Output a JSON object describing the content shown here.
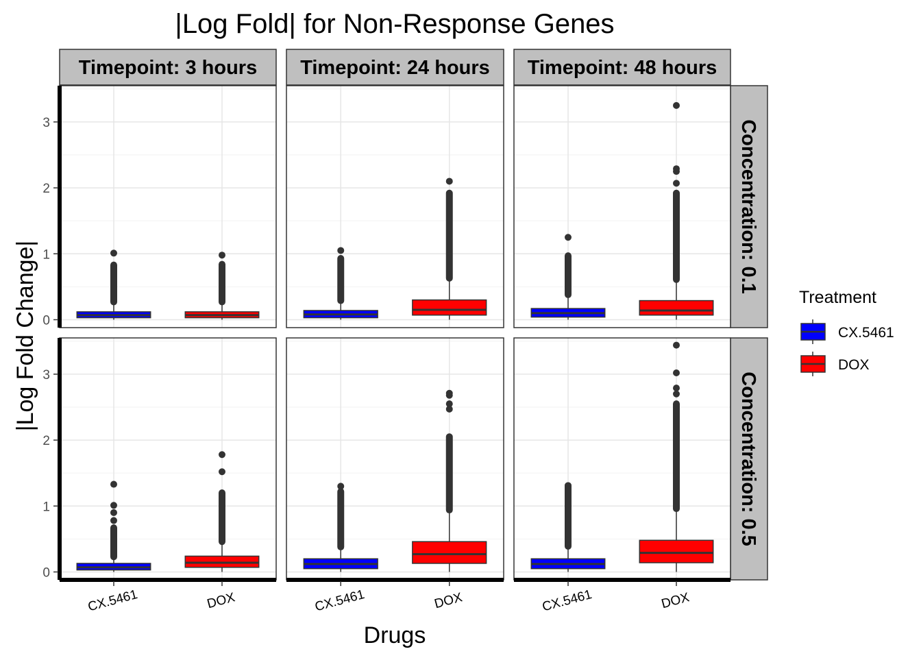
{
  "chart_data": {
    "type": "boxplot",
    "title": "|Log Fold| for Non-Response Genes",
    "xlabel": "Drugs",
    "ylabel": "|Log Fold Change|",
    "ylim": [
      -0.12,
      3.55
    ],
    "yticks": [
      0,
      1,
      2,
      3
    ],
    "categories": [
      "CX.5461",
      "DOX"
    ],
    "facet_cols": [
      "Timepoint: 3 hours",
      "Timepoint: 24 hours",
      "Timepoint: 48 hours"
    ],
    "facet_rows": [
      "Concentration: 0.1",
      "Concentration: 0.5"
    ],
    "legend": {
      "title": "Treatment",
      "position": "right",
      "items": [
        {
          "name": "CX.5461",
          "color": "#0000FF"
        },
        {
          "name": "DOX",
          "color": "#FF0000"
        }
      ]
    },
    "grid": true,
    "panels": [
      {
        "row": 0,
        "col": 0,
        "boxes": [
          {
            "cat": "CX.5461",
            "q1": 0.03,
            "median": 0.07,
            "q3": 0.12,
            "whisker_low": 0.0,
            "whisker_high": 0.26,
            "out_range": [
              0.27,
              0.83
            ],
            "outliers": [
              1.01
            ]
          },
          {
            "cat": "DOX",
            "q1": 0.03,
            "median": 0.07,
            "q3": 0.12,
            "whisker_low": 0.0,
            "whisker_high": 0.26,
            "out_range": [
              0.27,
              0.84
            ],
            "outliers": [
              0.98
            ]
          }
        ]
      },
      {
        "row": 0,
        "col": 1,
        "boxes": [
          {
            "cat": "CX.5461",
            "q1": 0.03,
            "median": 0.08,
            "q3": 0.14,
            "whisker_low": 0.0,
            "whisker_high": 0.28,
            "out_range": [
              0.29,
              0.93
            ],
            "outliers": [
              1.05
            ]
          },
          {
            "cat": "DOX",
            "q1": 0.07,
            "median": 0.15,
            "q3": 0.3,
            "whisker_low": 0.0,
            "whisker_high": 0.62,
            "out_range": [
              0.63,
              1.92
            ],
            "outliers": [
              2.1
            ]
          }
        ]
      },
      {
        "row": 0,
        "col": 2,
        "boxes": [
          {
            "cat": "CX.5461",
            "q1": 0.04,
            "median": 0.1,
            "q3": 0.17,
            "whisker_low": 0.0,
            "whisker_high": 0.37,
            "out_range": [
              0.38,
              0.97
            ],
            "outliers": [
              1.25
            ]
          },
          {
            "cat": "DOX",
            "q1": 0.07,
            "median": 0.14,
            "q3": 0.29,
            "whisker_low": 0.0,
            "whisker_high": 0.6,
            "out_range": [
              0.61,
              1.92
            ],
            "outliers": [
              2.07,
              2.25,
              2.29,
              3.25
            ]
          }
        ]
      },
      {
        "row": 1,
        "col": 0,
        "boxes": [
          {
            "cat": "CX.5461",
            "q1": 0.03,
            "median": 0.07,
            "q3": 0.13,
            "whisker_low": 0.0,
            "whisker_high": 0.22,
            "out_range": [
              0.23,
              0.67
            ],
            "outliers": [
              0.78,
              0.9,
              1.01,
              1.33
            ]
          },
          {
            "cat": "DOX",
            "q1": 0.07,
            "median": 0.14,
            "q3": 0.24,
            "whisker_low": 0.0,
            "whisker_high": 0.45,
            "out_range": [
              0.46,
              1.2
            ],
            "outliers": [
              1.52,
              1.78
            ]
          }
        ]
      },
      {
        "row": 1,
        "col": 1,
        "boxes": [
          {
            "cat": "CX.5461",
            "q1": 0.05,
            "median": 0.12,
            "q3": 0.2,
            "whisker_low": 0.0,
            "whisker_high": 0.37,
            "out_range": [
              0.38,
              1.22
            ],
            "outliers": [
              1.3
            ]
          },
          {
            "cat": "DOX",
            "q1": 0.13,
            "median": 0.27,
            "q3": 0.46,
            "whisker_low": 0.0,
            "whisker_high": 0.93,
            "out_range": [
              0.94,
              2.05
            ],
            "outliers": [
              2.47,
              2.55,
              2.68,
              2.71
            ]
          }
        ]
      },
      {
        "row": 1,
        "col": 2,
        "boxes": [
          {
            "cat": "CX.5461",
            "q1": 0.05,
            "median": 0.12,
            "q3": 0.2,
            "whisker_low": 0.0,
            "whisker_high": 0.38,
            "out_range": [
              0.39,
              1.31
            ],
            "outliers": [
              1.31
            ]
          },
          {
            "cat": "DOX",
            "q1": 0.14,
            "median": 0.29,
            "q3": 0.48,
            "whisker_low": 0.0,
            "whisker_high": 0.95,
            "out_range": [
              0.96,
              2.55
            ],
            "outliers": [
              2.7,
              2.79,
              3.02,
              3.44
            ]
          }
        ]
      }
    ]
  }
}
